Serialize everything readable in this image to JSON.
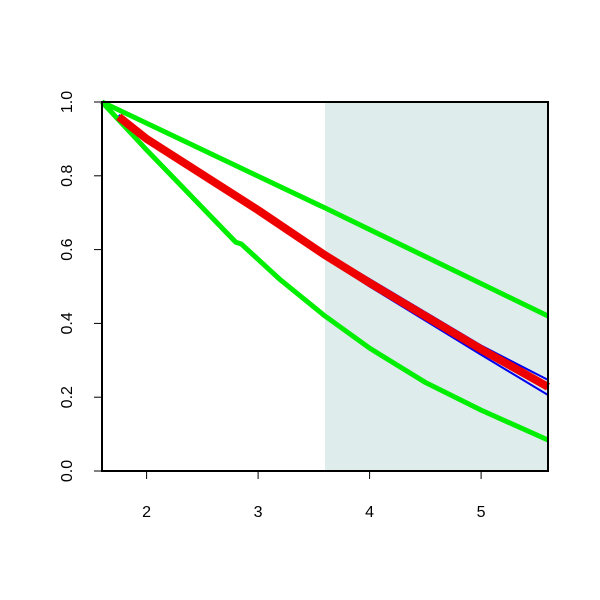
{
  "chart_data": {
    "type": "line",
    "xlim": [
      1.6,
      5.6
    ],
    "ylim": [
      0,
      1
    ],
    "xticks": [
      2,
      3,
      4,
      5
    ],
    "yticks": [
      {
        "value": 0,
        "label": "0.0"
      },
      {
        "value": 0.2,
        "label": "0.2"
      },
      {
        "value": 0.4,
        "label": "0.4"
      },
      {
        "value": 0.6,
        "label": "0.6"
      },
      {
        "value": 0.8,
        "label": "0.8"
      },
      {
        "value": 1,
        "label": "1.0"
      }
    ],
    "shade_xlim": [
      3.6,
      5.6
    ],
    "shade_color": "#dfecec",
    "series": [
      {
        "color": "#00ee00",
        "width": 5,
        "x": [
          1.6,
          3.55,
          3.6,
          5.6
        ],
        "values": [
          1.0,
          0.72,
          0.713,
          0.42
        ]
      },
      {
        "color": "#00ee00",
        "width": 5,
        "x": [
          1.6,
          2.0,
          2.8,
          2.85,
          3.2,
          3.6,
          4.0,
          4.5,
          5.0,
          5.6
        ],
        "values": [
          1.0,
          0.87,
          0.62,
          0.615,
          0.518,
          0.42,
          0.333,
          0.24,
          0.165,
          0.084
        ]
      },
      {
        "color": "#0000ee",
        "width": 2,
        "x": [
          1.75,
          2.0,
          3.0,
          3.6,
          4.0,
          5.0,
          5.6
        ],
        "values": [
          0.965,
          0.905,
          0.712,
          0.592,
          0.52,
          0.34,
          0.247
        ]
      },
      {
        "color": "#0000ee",
        "width": 2,
        "x": [
          1.75,
          2.0,
          3.0,
          3.6,
          4.0,
          5.0,
          5.6
        ],
        "values": [
          0.955,
          0.895,
          0.702,
          0.578,
          0.5,
          0.315,
          0.206
        ]
      },
      {
        "color": "#ee0000",
        "width": 8,
        "x": [
          1.75,
          2.0,
          3.0,
          3.6,
          4.0,
          5.0,
          5.6
        ],
        "values": [
          0.96,
          0.9,
          0.707,
          0.585,
          0.51,
          0.33,
          0.228
        ]
      }
    ]
  }
}
